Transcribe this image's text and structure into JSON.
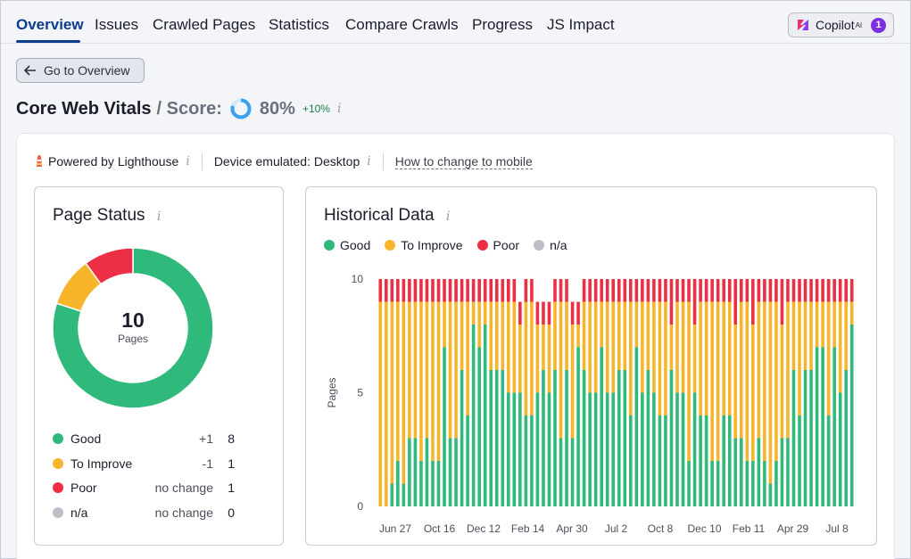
{
  "tabs": [
    "Overview",
    "Issues",
    "Crawled Pages",
    "Statistics",
    "Compare Crawls",
    "Progress",
    "JS Impact"
  ],
  "copilot": {
    "label": "Copilot",
    "sup": "AI",
    "badge": "1"
  },
  "back_button": "Go to Overview",
  "header": {
    "title": "Core Web Vitals",
    "score_label": "/ Score:",
    "score_value": "80%",
    "score_delta": "+10%",
    "score_fraction": 0.8
  },
  "info_glyph": "i",
  "powered": {
    "label": "Powered by Lighthouse",
    "device": "Device emulated: Desktop",
    "link": "How to change to mobile"
  },
  "colors": {
    "good": "#2fb97a",
    "improve": "#f7b52c",
    "poor": "#ec2f45",
    "na": "#bcbfc7",
    "accent": "#0b3e8c",
    "score": "#3aa0f0"
  },
  "page_status": {
    "title": "Page Status",
    "total": "10",
    "total_label": "Pages",
    "rows": [
      {
        "label": "Good",
        "delta": "+1",
        "count": "8",
        "color": "good"
      },
      {
        "label": "To Improve",
        "delta": "-1",
        "count": "1",
        "color": "improve"
      },
      {
        "label": "Poor",
        "delta": "no change",
        "count": "1",
        "color": "poor"
      },
      {
        "label": "n/a",
        "delta": "no change",
        "count": "0",
        "color": "na"
      }
    ]
  },
  "historical": {
    "title": "Historical Data",
    "legend": [
      "Good",
      "To Improve",
      "Poor",
      "n/a"
    ]
  },
  "chart_data": {
    "type": "bar",
    "stacked": true,
    "ylabel": "Pages",
    "ylim": [
      0,
      10
    ],
    "yticks": [
      0,
      5,
      10
    ],
    "xtick_labels": [
      "Jun 27",
      "Oct 16",
      "Dec 12",
      "Feb 14",
      "Apr 30",
      "Jul 2",
      "Oct 8",
      "Dec 10",
      "Feb 11",
      "Apr 29",
      "Jul 8"
    ],
    "series": [
      {
        "name": "Good",
        "values": [
          0,
          0,
          1,
          2,
          1,
          3,
          3,
          2,
          3,
          2,
          2,
          7,
          3,
          3,
          6,
          4,
          8,
          7,
          8,
          6,
          6,
          6,
          5,
          5,
          5,
          4,
          4,
          5,
          6,
          5,
          6,
          3,
          6,
          3,
          7,
          6,
          5,
          5,
          7,
          5,
          5,
          6,
          6,
          4,
          7,
          5,
          6,
          5,
          4,
          4,
          6,
          5,
          5,
          2,
          5,
          4,
          4,
          2,
          2,
          4,
          4,
          3,
          3,
          2,
          2,
          3,
          2,
          1,
          2,
          3,
          3,
          6,
          4,
          6,
          6,
          7,
          7,
          4,
          7,
          5,
          6,
          8
        ]
      },
      {
        "name": "To Improve",
        "values": [
          9,
          9,
          8,
          7,
          8,
          6,
          6,
          7,
          6,
          7,
          7,
          2,
          6,
          6,
          3,
          5,
          1,
          2,
          1,
          3,
          3,
          3,
          4,
          4,
          3,
          5,
          5,
          3,
          2,
          3,
          3,
          6,
          3,
          5,
          1,
          3,
          4,
          4,
          2,
          4,
          4,
          3,
          3,
          5,
          2,
          4,
          3,
          4,
          5,
          5,
          2,
          4,
          4,
          7,
          3,
          5,
          5,
          7,
          7,
          5,
          5,
          5,
          6,
          7,
          6,
          6,
          7,
          8,
          7,
          5,
          6,
          3,
          5,
          3,
          3,
          2,
          2,
          5,
          2,
          4,
          3,
          1
        ]
      },
      {
        "name": "Poor",
        "values": [
          1,
          1,
          1,
          1,
          1,
          1,
          1,
          1,
          1,
          1,
          1,
          1,
          1,
          1,
          1,
          1,
          1,
          1,
          1,
          1,
          1,
          1,
          1,
          1,
          1,
          1,
          1,
          1,
          1,
          1,
          1,
          1,
          1,
          1,
          1,
          1,
          1,
          1,
          1,
          1,
          1,
          1,
          1,
          1,
          1,
          1,
          1,
          1,
          1,
          1,
          2,
          1,
          1,
          1,
          2,
          1,
          1,
          1,
          1,
          1,
          1,
          2,
          1,
          1,
          2,
          1,
          1,
          1,
          1,
          2,
          1,
          1,
          1,
          1,
          1,
          1,
          1,
          1,
          1,
          1,
          1,
          1
        ]
      },
      {
        "name": "n/a",
        "values": [
          0,
          0,
          0,
          0,
          0,
          0,
          0,
          0,
          0,
          0,
          0,
          0,
          0,
          0,
          0,
          0,
          0,
          0,
          0,
          0,
          0,
          0,
          0,
          0,
          0,
          0,
          0,
          0,
          0,
          0,
          0,
          0,
          0,
          0,
          0,
          0,
          0,
          0,
          0,
          0,
          0,
          0,
          0,
          0,
          0,
          0,
          0,
          0,
          0,
          0,
          0,
          0,
          0,
          0,
          0,
          0,
          0,
          0,
          0,
          0,
          0,
          0,
          0,
          0,
          0,
          0,
          0,
          0,
          0,
          0,
          0,
          0,
          0,
          0,
          0,
          0,
          0,
          0,
          0,
          0,
          0,
          0
        ]
      }
    ]
  }
}
